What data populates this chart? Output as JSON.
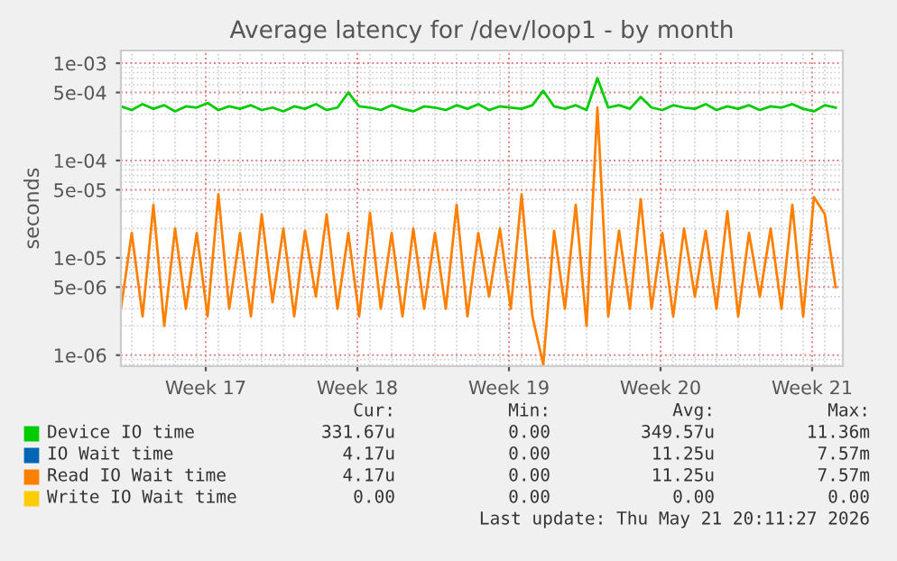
{
  "chart_data": {
    "type": "line",
    "title": "Average latency for /dev/loop1 - by month",
    "ylabel": "seconds",
    "log": "y",
    "grid": true,
    "legend": "bottom left",
    "marker": "none",
    "line_style": "solid",
    "xlim": [
      "2026-04-18T12:00",
      "2026-05-21T20:00"
    ],
    "xticks": [
      {
        "value": "2026-04-22T10:00",
        "label": "Week 17"
      },
      {
        "value": "2026-04-29T10:00",
        "label": "Week 18"
      },
      {
        "value": "2026-05-06T10:00",
        "label": "Week 19"
      },
      {
        "value": "2026-05-13T10:00",
        "label": "Week 20"
      },
      {
        "value": "2026-05-20T10:00",
        "label": "Week 21"
      }
    ],
    "x": [
      "2026-04-18T12:00",
      "2026-04-19T00:00",
      "2026-04-19T12:00",
      "2026-04-20T00:00",
      "2026-04-20T12:00",
      "2026-04-21T00:00",
      "2026-04-21T12:00",
      "2026-04-22T00:00",
      "2026-04-22T12:00",
      "2026-04-23T00:00",
      "2026-04-23T12:00",
      "2026-04-24T00:00",
      "2026-04-24T12:00",
      "2026-04-25T00:00",
      "2026-04-25T12:00",
      "2026-04-26T00:00",
      "2026-04-26T12:00",
      "2026-04-27T00:00",
      "2026-04-27T12:00",
      "2026-04-28T00:00",
      "2026-04-28T12:00",
      "2026-04-29T00:00",
      "2026-04-29T12:00",
      "2026-04-30T00:00",
      "2026-04-30T12:00",
      "2026-05-01T00:00",
      "2026-05-01T12:00",
      "2026-05-02T00:00",
      "2026-05-02T12:00",
      "2026-05-03T00:00",
      "2026-05-03T12:00",
      "2026-05-04T00:00",
      "2026-05-04T12:00",
      "2026-05-05T00:00",
      "2026-05-05T12:00",
      "2026-05-06T00:00",
      "2026-05-06T12:00",
      "2026-05-07T00:00",
      "2026-05-07T12:00",
      "2026-05-08T00:00",
      "2026-05-08T12:00",
      "2026-05-09T00:00",
      "2026-05-09T12:00",
      "2026-05-10T00:00",
      "2026-05-10T12:00",
      "2026-05-11T00:00",
      "2026-05-11T12:00",
      "2026-05-12T00:00",
      "2026-05-12T12:00",
      "2026-05-13T00:00",
      "2026-05-13T12:00",
      "2026-05-14T00:00",
      "2026-05-14T12:00",
      "2026-05-15T00:00",
      "2026-05-15T12:00",
      "2026-05-16T00:00",
      "2026-05-16T12:00",
      "2026-05-17T00:00",
      "2026-05-17T12:00",
      "2026-05-18T00:00",
      "2026-05-18T12:00",
      "2026-05-19T00:00",
      "2026-05-19T12:00",
      "2026-05-20T00:00",
      "2026-05-20T12:00",
      "2026-05-21T00:00",
      "2026-05-21T12:00"
    ],
    "ylim": [
      7.7e-07,
      0.00135
    ],
    "yticks": [
      {
        "value": 0.001,
        "label": "1e-03"
      },
      {
        "value": 0.0005,
        "label": "5e-04"
      },
      {
        "value": 0.0001,
        "label": "1e-04"
      },
      {
        "value": 5e-05,
        "label": "5e-05"
      },
      {
        "value": 1e-05,
        "label": "1e-05"
      },
      {
        "value": 5e-06,
        "label": "5e-06"
      },
      {
        "value": 1e-06,
        "label": "1e-06"
      }
    ],
    "series": [
      {
        "name": "Device IO time",
        "color": "#00cc00",
        "values": [
          0.00036,
          0.00033,
          0.00038,
          0.00034,
          0.00037,
          0.00032,
          0.00036,
          0.00035,
          0.00039,
          0.00033,
          0.00036,
          0.00034,
          0.00037,
          0.00033,
          0.00035,
          0.00032,
          0.00036,
          0.00034,
          0.00038,
          0.00033,
          0.00035,
          0.0005,
          0.00036,
          0.00035,
          0.00033,
          0.00037,
          0.00034,
          0.00032,
          0.00036,
          0.00035,
          0.00033,
          0.00037,
          0.00034,
          0.00038,
          0.00033,
          0.00036,
          0.00035,
          0.00034,
          0.00037,
          0.00052,
          0.00036,
          0.00034,
          0.00037,
          0.00033,
          0.0007,
          0.00035,
          0.00037,
          0.00034,
          0.00045,
          0.00035,
          0.00033,
          0.00037,
          0.00035,
          0.00034,
          0.00038,
          0.00033,
          0.00036,
          0.00034,
          0.00037,
          0.00033,
          0.00036,
          0.00035,
          0.00038,
          0.00034,
          0.00032,
          0.00037,
          0.00035
        ]
      },
      {
        "name": "IO Wait time",
        "color": "#0066b3",
        "values": [
          null,
          null,
          null,
          null,
          null,
          null,
          null,
          null,
          null,
          null,
          null,
          null,
          null,
          null,
          null,
          null,
          null,
          null,
          null,
          null,
          null,
          null,
          null,
          null,
          null,
          null,
          null,
          null,
          null,
          null,
          null,
          null,
          null,
          null,
          null,
          null,
          null,
          null,
          null,
          null,
          null,
          null,
          null,
          null,
          null,
          null,
          null,
          null,
          null,
          null,
          null,
          null,
          null,
          null,
          null,
          null,
          null,
          null,
          null,
          null,
          null,
          null,
          null,
          null,
          null,
          null,
          null
        ]
      },
      {
        "name": "Read IO Wait time",
        "color": "#ff8000",
        "values": [
          3e-06,
          1.8e-05,
          2.5e-06,
          3.5e-05,
          2e-06,
          2e-05,
          3e-06,
          1.8e-05,
          2.5e-06,
          4.5e-05,
          3e-06,
          1.8e-05,
          2.5e-06,
          2.8e-05,
          3.5e-06,
          2e-05,
          2.5e-06,
          1.9e-05,
          4e-06,
          2.8e-05,
          3e-06,
          1.8e-05,
          2.5e-06,
          2.9e-05,
          3e-06,
          1.8e-05,
          2.5e-06,
          2e-05,
          3e-06,
          1.8e-05,
          3e-06,
          3.5e-05,
          2.5e-06,
          1.8e-05,
          4e-06,
          2e-05,
          3e-06,
          4.5e-05,
          2.5e-06,
          8e-07,
          1.9e-05,
          3e-06,
          3.5e-05,
          2e-06,
          0.00035,
          2.5e-06,
          1.9e-05,
          3e-06,
          4e-05,
          3e-06,
          1.8e-05,
          2.5e-06,
          2e-05,
          4e-06,
          1.9e-05,
          3e-06,
          3e-05,
          2.5e-06,
          1.8e-05,
          4e-06,
          2e-05,
          3e-06,
          3.5e-05,
          2.5e-06,
          4.2e-05,
          2.8e-05,
          5e-06
        ]
      },
      {
        "name": "Write IO Wait time",
        "color": "#ffcc00",
        "values": [
          null,
          null,
          null,
          null,
          null,
          null,
          null,
          null,
          null,
          null,
          null,
          null,
          null,
          null,
          null,
          null,
          null,
          null,
          null,
          null,
          null,
          null,
          null,
          null,
          null,
          null,
          null,
          null,
          null,
          null,
          null,
          null,
          null,
          null,
          null,
          null,
          null,
          null,
          null,
          null,
          null,
          null,
          null,
          null,
          null,
          null,
          null,
          null,
          null,
          null,
          null,
          null,
          null,
          null,
          null,
          null,
          null,
          null,
          null,
          null,
          null,
          null,
          null,
          null,
          null,
          null,
          null
        ]
      }
    ],
    "annotations": [
      "Cur:",
      "Min:",
      "Avg:",
      "Max:",
      "331.67u",
      "0.00",
      "349.57u",
      "11.36m",
      "4.17u",
      "0.00",
      "11.25u",
      "7.57m",
      "4.17u",
      "0.00",
      "11.25u",
      "7.57m",
      "0.00",
      "0.00",
      "0.00",
      "0.00",
      "Last update: Thu May 21 20:11:27 2026"
    ]
  }
}
